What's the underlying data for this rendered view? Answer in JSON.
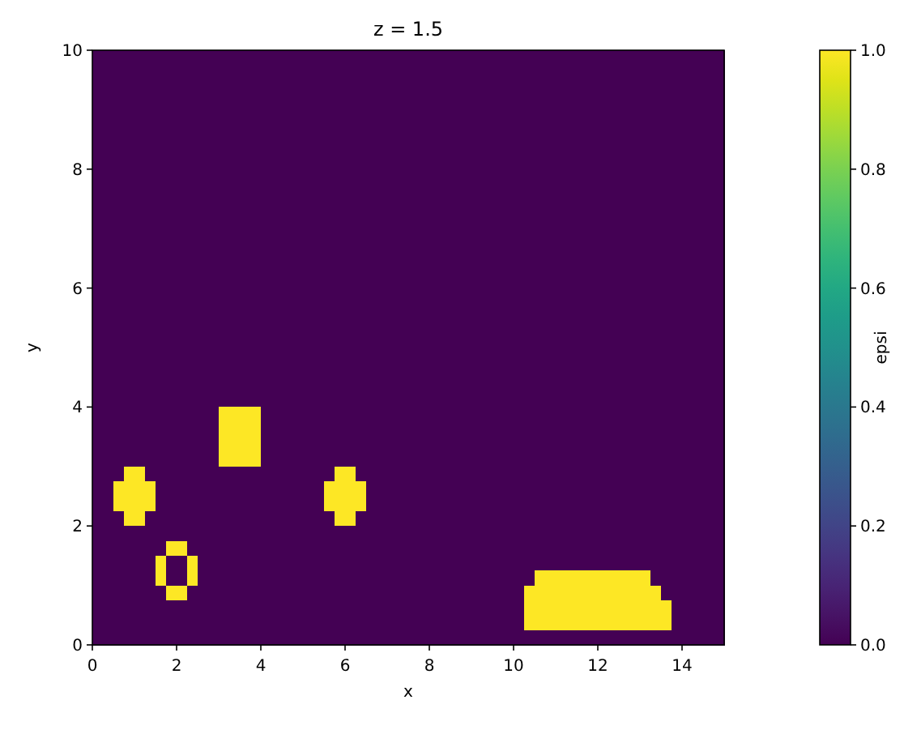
{
  "chart_data": {
    "type": "heatmap",
    "title": "z = 1.5",
    "xlabel": "x",
    "ylabel": "y",
    "clabel": "epsi",
    "xlim": [
      0,
      15
    ],
    "ylim": [
      0,
      10
    ],
    "xticks": [
      0,
      2,
      4,
      6,
      8,
      10,
      12,
      14
    ],
    "yticks": [
      0,
      2,
      4,
      6,
      8,
      10
    ],
    "clim": [
      0,
      1
    ],
    "cticks": [
      {
        "value": 0,
        "label": "0.0"
      },
      0.2,
      0.4,
      0.6,
      0.8,
      {
        "value": 1,
        "label": "1.0"
      }
    ],
    "cells": [
      [
        0,
        0,
        0,
        0,
        0,
        0,
        0,
        0,
        0,
        0,
        0,
        0,
        0,
        0,
        0,
        0,
        0,
        0,
        0,
        0,
        0,
        0,
        0,
        0,
        0,
        0,
        0,
        0,
        0,
        0,
        0,
        0,
        0,
        0,
        0,
        0,
        0,
        0,
        0,
        0,
        0,
        0,
        0,
        0,
        0,
        0,
        0,
        0,
        0,
        0,
        0,
        0,
        0,
        0,
        0,
        0,
        0,
        0,
        0,
        0
      ],
      [
        0,
        0,
        0,
        0,
        0,
        0,
        0,
        0,
        0,
        0,
        0,
        0,
        0,
        0,
        0,
        0,
        0,
        0,
        0,
        0,
        0,
        0,
        0,
        0,
        0,
        0,
        0,
        0,
        0,
        0,
        0,
        0,
        0,
        0,
        0,
        0,
        0,
        0,
        0,
        0,
        0,
        0,
        0,
        0,
        0,
        0,
        0,
        0,
        0,
        0,
        0,
        0,
        0,
        0,
        0,
        0,
        0,
        0,
        0,
        0
      ],
      [
        0,
        0,
        0,
        0,
        0,
        0,
        0,
        0,
        0,
        0,
        0,
        0,
        0,
        0,
        0,
        0,
        0,
        0,
        0,
        0,
        0,
        0,
        0,
        0,
        0,
        0,
        0,
        0,
        0,
        0,
        0,
        0,
        0,
        0,
        0,
        0,
        0,
        0,
        0,
        0,
        0,
        0,
        0,
        0,
        0,
        0,
        0,
        0,
        0,
        0,
        0,
        0,
        0,
        0,
        0,
        0,
        0,
        0,
        0,
        0
      ],
      [
        0,
        0,
        0,
        0,
        0,
        0,
        0,
        0,
        0,
        0,
        0,
        0,
        0,
        0,
        0,
        0,
        0,
        0,
        0,
        0,
        0,
        0,
        0,
        0,
        0,
        0,
        0,
        0,
        0,
        0,
        0,
        0,
        0,
        0,
        0,
        0,
        0,
        0,
        0,
        0,
        0,
        0,
        0,
        0,
        0,
        0,
        0,
        0,
        0,
        0,
        0,
        0,
        0,
        0,
        0,
        0,
        0,
        0,
        0,
        0
      ],
      [
        0,
        0,
        0,
        0,
        0,
        0,
        0,
        0,
        0,
        0,
        0,
        0,
        0,
        0,
        0,
        0,
        0,
        0,
        0,
        0,
        0,
        0,
        0,
        0,
        0,
        0,
        0,
        0,
        0,
        0,
        0,
        0,
        0,
        0,
        0,
        0,
        0,
        0,
        0,
        0,
        0,
        0,
        0,
        0,
        0,
        0,
        0,
        0,
        0,
        0,
        0,
        0,
        0,
        0,
        0,
        0,
        0,
        0,
        0,
        0
      ],
      [
        0,
        0,
        0,
        0,
        0,
        0,
        0,
        0,
        0,
        0,
        0,
        0,
        0,
        0,
        0,
        0,
        0,
        0,
        0,
        0,
        0,
        0,
        0,
        0,
        0,
        0,
        0,
        0,
        0,
        0,
        0,
        0,
        0,
        0,
        0,
        0,
        0,
        0,
        0,
        0,
        0,
        0,
        0,
        0,
        0,
        0,
        0,
        0,
        0,
        0,
        0,
        0,
        0,
        0,
        0,
        0,
        0,
        0,
        0,
        0
      ],
      [
        0,
        0,
        0,
        0,
        0,
        0,
        0,
        0,
        0,
        0,
        0,
        0,
        0,
        0,
        0,
        0,
        0,
        0,
        0,
        0,
        0,
        0,
        0,
        0,
        0,
        0,
        0,
        0,
        0,
        0,
        0,
        0,
        0,
        0,
        0,
        0,
        0,
        0,
        0,
        0,
        0,
        0,
        0,
        0,
        0,
        0,
        0,
        0,
        0,
        0,
        0,
        0,
        0,
        0,
        0,
        0,
        0,
        0,
        0,
        0
      ],
      [
        0,
        0,
        0,
        0,
        0,
        0,
        0,
        0,
        0,
        0,
        0,
        0,
        0,
        0,
        0,
        0,
        0,
        0,
        0,
        0,
        0,
        0,
        0,
        0,
        0,
        0,
        0,
        0,
        0,
        0,
        0,
        0,
        0,
        0,
        0,
        0,
        0,
        0,
        0,
        0,
        0,
        0,
        0,
        0,
        0,
        0,
        0,
        0,
        0,
        0,
        0,
        0,
        0,
        0,
        0,
        0,
        0,
        0,
        0,
        0
      ],
      [
        0,
        0,
        0,
        0,
        0,
        0,
        0,
        0,
        0,
        0,
        0,
        0,
        0,
        0,
        0,
        0,
        0,
        0,
        0,
        0,
        0,
        0,
        0,
        0,
        0,
        0,
        0,
        0,
        0,
        0,
        0,
        0,
        0,
        0,
        0,
        0,
        0,
        0,
        0,
        0,
        0,
        0,
        0,
        0,
        0,
        0,
        0,
        0,
        0,
        0,
        0,
        0,
        0,
        0,
        0,
        0,
        0,
        0,
        0,
        0
      ],
      [
        0,
        0,
        0,
        0,
        0,
        0,
        0,
        0,
        0,
        0,
        0,
        0,
        0,
        0,
        0,
        0,
        0,
        0,
        0,
        0,
        0,
        0,
        0,
        0,
        0,
        0,
        0,
        0,
        0,
        0,
        0,
        0,
        0,
        0,
        0,
        0,
        0,
        0,
        0,
        0,
        0,
        0,
        0,
        0,
        0,
        0,
        0,
        0,
        0,
        0,
        0,
        0,
        0,
        0,
        0,
        0,
        0,
        0,
        0,
        0
      ],
      [
        0,
        0,
        0,
        0,
        0,
        0,
        0,
        0,
        0,
        0,
        0,
        0,
        0,
        0,
        0,
        0,
        0,
        0,
        0,
        0,
        0,
        0,
        0,
        0,
        0,
        0,
        0,
        0,
        0,
        0,
        0,
        0,
        0,
        0,
        0,
        0,
        0,
        0,
        0,
        0,
        0,
        0,
        0,
        0,
        0,
        0,
        0,
        0,
        0,
        0,
        0,
        0,
        0,
        0,
        0,
        0,
        0,
        0,
        0,
        0
      ],
      [
        0,
        0,
        0,
        0,
        0,
        0,
        0,
        0,
        0,
        0,
        0,
        0,
        0,
        0,
        0,
        0,
        0,
        0,
        0,
        0,
        0,
        0,
        0,
        0,
        0,
        0,
        0,
        0,
        0,
        0,
        0,
        0,
        0,
        0,
        0,
        0,
        0,
        0,
        0,
        0,
        0,
        0,
        0,
        0,
        0,
        0,
        0,
        0,
        0,
        0,
        0,
        0,
        0,
        0,
        0,
        0,
        0,
        0,
        0,
        0
      ],
      [
        0,
        0,
        0,
        0,
        0,
        0,
        0,
        0,
        0,
        0,
        0,
        0,
        0,
        0,
        0,
        0,
        0,
        0,
        0,
        0,
        0,
        0,
        0,
        0,
        0,
        0,
        0,
        0,
        0,
        0,
        0,
        0,
        0,
        0,
        0,
        0,
        0,
        0,
        0,
        0,
        0,
        0,
        0,
        0,
        0,
        0,
        0,
        0,
        0,
        0,
        0,
        0,
        0,
        0,
        0,
        0,
        0,
        0,
        0,
        0
      ],
      [
        0,
        0,
        0,
        0,
        0,
        0,
        0,
        0,
        0,
        0,
        0,
        0,
        0,
        0,
        0,
        0,
        0,
        0,
        0,
        0,
        0,
        0,
        0,
        0,
        0,
        0,
        0,
        0,
        0,
        0,
        0,
        0,
        0,
        0,
        0,
        0,
        0,
        0,
        0,
        0,
        0,
        0,
        0,
        0,
        0,
        0,
        0,
        0,
        0,
        0,
        0,
        0,
        0,
        0,
        0,
        0,
        0,
        0,
        0,
        0
      ],
      [
        0,
        0,
        0,
        0,
        0,
        0,
        0,
        0,
        0,
        0,
        0,
        0,
        0,
        0,
        0,
        0,
        0,
        0,
        0,
        0,
        0,
        0,
        0,
        0,
        0,
        0,
        0,
        0,
        0,
        0,
        0,
        0,
        0,
        0,
        0,
        0,
        0,
        0,
        0,
        0,
        0,
        0,
        0,
        0,
        0,
        0,
        0,
        0,
        0,
        0,
        0,
        0,
        0,
        0,
        0,
        0,
        0,
        0,
        0,
        0
      ],
      [
        0,
        0,
        0,
        0,
        0,
        0,
        0,
        0,
        0,
        0,
        0,
        0,
        0,
        0,
        0,
        0,
        0,
        0,
        0,
        0,
        0,
        0,
        0,
        0,
        0,
        0,
        0,
        0,
        0,
        0,
        0,
        0,
        0,
        0,
        0,
        0,
        0,
        0,
        0,
        0,
        0,
        0,
        0,
        0,
        0,
        0,
        0,
        0,
        0,
        0,
        0,
        0,
        0,
        0,
        0,
        0,
        0,
        0,
        0,
        0
      ],
      [
        0,
        0,
        0,
        0,
        0,
        0,
        0,
        0,
        0,
        0,
        0,
        0,
        0,
        0,
        0,
        0,
        0,
        0,
        0,
        0,
        0,
        0,
        0,
        0,
        0,
        0,
        0,
        0,
        0,
        0,
        0,
        0,
        0,
        0,
        0,
        0,
        0,
        0,
        0,
        0,
        0,
        0,
        0,
        0,
        0,
        0,
        0,
        0,
        0,
        0,
        0,
        0,
        0,
        0,
        0,
        0,
        0,
        0,
        0,
        0
      ],
      [
        0,
        0,
        0,
        0,
        0,
        0,
        0,
        0,
        0,
        0,
        0,
        0,
        0,
        0,
        0,
        0,
        0,
        0,
        0,
        0,
        0,
        0,
        0,
        0,
        0,
        0,
        0,
        0,
        0,
        0,
        0,
        0,
        0,
        0,
        0,
        0,
        0,
        0,
        0,
        0,
        0,
        0,
        0,
        0,
        0,
        0,
        0,
        0,
        0,
        0,
        0,
        0,
        0,
        0,
        0,
        0,
        0,
        0,
        0,
        0
      ],
      [
        0,
        0,
        0,
        0,
        0,
        0,
        0,
        0,
        0,
        0,
        0,
        0,
        0,
        0,
        0,
        0,
        0,
        0,
        0,
        0,
        0,
        0,
        0,
        0,
        0,
        0,
        0,
        0,
        0,
        0,
        0,
        0,
        0,
        0,
        0,
        0,
        0,
        0,
        0,
        0,
        0,
        0,
        0,
        0,
        0,
        0,
        0,
        0,
        0,
        0,
        0,
        0,
        0,
        0,
        0,
        0,
        0,
        0,
        0,
        0
      ],
      [
        0,
        0,
        0,
        0,
        0,
        0,
        0,
        0,
        0,
        0,
        0,
        0,
        0,
        0,
        0,
        0,
        0,
        0,
        0,
        0,
        0,
        0,
        0,
        0,
        0,
        0,
        0,
        0,
        0,
        0,
        0,
        0,
        0,
        0,
        0,
        0,
        0,
        0,
        0,
        0,
        0,
        0,
        0,
        0,
        0,
        0,
        0,
        0,
        0,
        0,
        0,
        0,
        0,
        0,
        0,
        0,
        0,
        0,
        0,
        0
      ],
      [
        0,
        0,
        0,
        0,
        0,
        0,
        0,
        0,
        0,
        0,
        0,
        0,
        0,
        0,
        0,
        0,
        0,
        0,
        0,
        0,
        0,
        0,
        0,
        0,
        0,
        0,
        0,
        0,
        0,
        0,
        0,
        0,
        0,
        0,
        0,
        0,
        0,
        0,
        0,
        0,
        0,
        0,
        0,
        0,
        0,
        0,
        0,
        0,
        0,
        0,
        0,
        0,
        0,
        0,
        0,
        0,
        0,
        0,
        0,
        0
      ],
      [
        0,
        0,
        0,
        0,
        0,
        0,
        0,
        0,
        0,
        0,
        0,
        0,
        0,
        0,
        0,
        0,
        0,
        0,
        0,
        0,
        0,
        0,
        0,
        0,
        0,
        0,
        0,
        0,
        0,
        0,
        0,
        0,
        0,
        0,
        0,
        0,
        0,
        0,
        0,
        0,
        0,
        0,
        0,
        0,
        0,
        0,
        0,
        0,
        0,
        0,
        0,
        0,
        0,
        0,
        0,
        0,
        0,
        0,
        0,
        0
      ],
      [
        0,
        0,
        0,
        0,
        0,
        0,
        0,
        0,
        0,
        0,
        0,
        0,
        0,
        0,
        0,
        0,
        0,
        0,
        0,
        0,
        0,
        0,
        0,
        0,
        0,
        0,
        0,
        0,
        0,
        0,
        0,
        0,
        0,
        0,
        0,
        0,
        0,
        0,
        0,
        0,
        0,
        0,
        0,
        0,
        0,
        0,
        0,
        0,
        0,
        0,
        0,
        0,
        0,
        0,
        0,
        0,
        0,
        0,
        0,
        0
      ],
      [
        0,
        0,
        0,
        0,
        0,
        0,
        0,
        0,
        0,
        0,
        0,
        0,
        0,
        0,
        0,
        0,
        0,
        0,
        0,
        0,
        0,
        0,
        0,
        0,
        0,
        0,
        0,
        0,
        0,
        0,
        0,
        0,
        0,
        0,
        0,
        0,
        0,
        0,
        0,
        0,
        0,
        0,
        0,
        0,
        0,
        0,
        0,
        0,
        0,
        0,
        0,
        0,
        0,
        0,
        0,
        0,
        0,
        0,
        0,
        0
      ],
      [
        0,
        0,
        0,
        0,
        0,
        0,
        0,
        0,
        0,
        0,
        0,
        0,
        1,
        1,
        1,
        1,
        0,
        0,
        0,
        0,
        0,
        0,
        0,
        0,
        0,
        0,
        0,
        0,
        0,
        0,
        0,
        0,
        0,
        0,
        0,
        0,
        0,
        0,
        0,
        0,
        0,
        0,
        0,
        0,
        0,
        0,
        0,
        0,
        0,
        0,
        0,
        0,
        0,
        0,
        0,
        0,
        0,
        0,
        0,
        0
      ],
      [
        0,
        0,
        0,
        0,
        0,
        0,
        0,
        0,
        0,
        0,
        0,
        0,
        1,
        1,
        1,
        1,
        0,
        0,
        0,
        0,
        0,
        0,
        0,
        0,
        0,
        0,
        0,
        0,
        0,
        0,
        0,
        0,
        0,
        0,
        0,
        0,
        0,
        0,
        0,
        0,
        0,
        0,
        0,
        0,
        0,
        0,
        0,
        0,
        0,
        0,
        0,
        0,
        0,
        0,
        0,
        0,
        0,
        0,
        0,
        0
      ],
      [
        0,
        0,
        0,
        0,
        0,
        0,
        0,
        0,
        0,
        0,
        0,
        0,
        1,
        1,
        1,
        1,
        0,
        0,
        0,
        0,
        0,
        0,
        0,
        0,
        0,
        0,
        0,
        0,
        0,
        0,
        0,
        0,
        0,
        0,
        0,
        0,
        0,
        0,
        0,
        0,
        0,
        0,
        0,
        0,
        0,
        0,
        0,
        0,
        0,
        0,
        0,
        0,
        0,
        0,
        0,
        0,
        0,
        0,
        0,
        0
      ],
      [
        0,
        0,
        0,
        0,
        0,
        0,
        0,
        0,
        0,
        0,
        0,
        0,
        1,
        1,
        1,
        1,
        0,
        0,
        0,
        0,
        0,
        0,
        0,
        0,
        0,
        0,
        0,
        0,
        0,
        0,
        0,
        0,
        0,
        0,
        0,
        0,
        0,
        0,
        0,
        0,
        0,
        0,
        0,
        0,
        0,
        0,
        0,
        0,
        0,
        0,
        0,
        0,
        0,
        0,
        0,
        0,
        0,
        0,
        0,
        0
      ],
      [
        0,
        0,
        0,
        1,
        1,
        0,
        0,
        0,
        0,
        0,
        0,
        0,
        0,
        0,
        0,
        0,
        0,
        0,
        0,
        0,
        0,
        0,
        0,
        1,
        1,
        0,
        0,
        0,
        0,
        0,
        0,
        0,
        0,
        0,
        0,
        0,
        0,
        0,
        0,
        0,
        0,
        0,
        0,
        0,
        0,
        0,
        0,
        0,
        0,
        0,
        0,
        0,
        0,
        0,
        0,
        0,
        0,
        0,
        0,
        0
      ],
      [
        0,
        0,
        1,
        1,
        1,
        1,
        0,
        0,
        0,
        0,
        0,
        0,
        0,
        0,
        0,
        0,
        0,
        0,
        0,
        0,
        0,
        0,
        1,
        1,
        1,
        1,
        0,
        0,
        0,
        0,
        0,
        0,
        0,
        0,
        0,
        0,
        0,
        0,
        0,
        0,
        0,
        0,
        0,
        0,
        0,
        0,
        0,
        0,
        0,
        0,
        0,
        0,
        0,
        0,
        0,
        0,
        0,
        0,
        0,
        0
      ],
      [
        0,
        0,
        1,
        1,
        1,
        1,
        0,
        0,
        0,
        0,
        0,
        0,
        0,
        0,
        0,
        0,
        0,
        0,
        0,
        0,
        0,
        0,
        1,
        1,
        1,
        1,
        0,
        0,
        0,
        0,
        0,
        0,
        0,
        0,
        0,
        0,
        0,
        0,
        0,
        0,
        0,
        0,
        0,
        0,
        0,
        0,
        0,
        0,
        0,
        0,
        0,
        0,
        0,
        0,
        0,
        0,
        0,
        0,
        0,
        0
      ],
      [
        0,
        0,
        0,
        1,
        1,
        0,
        0,
        0,
        0,
        0,
        0,
        0,
        0,
        0,
        0,
        0,
        0,
        0,
        0,
        0,
        0,
        0,
        0,
        1,
        1,
        0,
        0,
        0,
        0,
        0,
        0,
        0,
        0,
        0,
        0,
        0,
        0,
        0,
        0,
        0,
        0,
        0,
        0,
        0,
        0,
        0,
        0,
        0,
        0,
        0,
        0,
        0,
        0,
        0,
        0,
        0,
        0,
        0,
        0,
        0
      ],
      [
        0,
        0,
        0,
        0,
        0,
        0,
        0,
        0,
        0,
        0,
        0,
        0,
        0,
        0,
        0,
        0,
        0,
        0,
        0,
        0,
        0,
        0,
        0,
        0,
        0,
        0,
        0,
        0,
        0,
        0,
        0,
        0,
        0,
        0,
        0,
        0,
        0,
        0,
        0,
        0,
        0,
        0,
        0,
        0,
        0,
        0,
        0,
        0,
        0,
        0,
        0,
        0,
        0,
        0,
        0,
        0,
        0,
        0,
        0,
        0
      ],
      [
        0,
        0,
        0,
        0,
        0,
        0,
        0,
        1,
        1,
        0,
        0,
        0,
        0,
        0,
        0,
        0,
        0,
        0,
        0,
        0,
        0,
        0,
        0,
        0,
        0,
        0,
        0,
        0,
        0,
        0,
        0,
        0,
        0,
        0,
        0,
        0,
        0,
        0,
        0,
        0,
        0,
        0,
        0,
        0,
        0,
        0,
        0,
        0,
        0,
        0,
        0,
        0,
        0,
        0,
        0,
        0,
        0,
        0,
        0,
        0
      ],
      [
        0,
        0,
        0,
        0,
        0,
        0,
        1,
        0,
        0,
        1,
        0,
        0,
        0,
        0,
        0,
        0,
        0,
        0,
        0,
        0,
        0,
        0,
        0,
        0,
        0,
        0,
        0,
        0,
        0,
        0,
        0,
        0,
        0,
        0,
        0,
        0,
        0,
        0,
        0,
        0,
        0,
        0,
        0,
        0,
        0,
        0,
        0,
        0,
        0,
        0,
        0,
        0,
        0,
        0,
        0,
        0,
        0,
        0,
        0,
        0
      ],
      [
        0,
        0,
        0,
        0,
        0,
        0,
        1,
        0,
        0,
        1,
        0,
        0,
        0,
        0,
        0,
        0,
        0,
        0,
        0,
        0,
        0,
        0,
        0,
        0,
        0,
        0,
        0,
        0,
        0,
        0,
        0,
        0,
        0,
        0,
        0,
        0,
        0,
        0,
        0,
        0,
        0,
        0,
        1,
        1,
        1,
        1,
        1,
        1,
        1,
        1,
        1,
        1,
        1,
        0,
        0,
        0,
        0,
        0,
        0,
        0
      ],
      [
        0,
        0,
        0,
        0,
        0,
        0,
        0,
        1,
        1,
        0,
        0,
        0,
        0,
        0,
        0,
        0,
        0,
        0,
        0,
        0,
        0,
        0,
        0,
        0,
        0,
        0,
        0,
        0,
        0,
        0,
        0,
        0,
        0,
        0,
        0,
        0,
        0,
        0,
        0,
        0,
        0,
        1,
        1,
        1,
        1,
        1,
        1,
        1,
        1,
        1,
        1,
        1,
        1,
        1,
        0,
        0,
        0,
        0,
        0,
        0
      ],
      [
        0,
        0,
        0,
        0,
        0,
        0,
        0,
        0,
        0,
        0,
        0,
        0,
        0,
        0,
        0,
        0,
        0,
        0,
        0,
        0,
        0,
        0,
        0,
        0,
        0,
        0,
        0,
        0,
        0,
        0,
        0,
        0,
        0,
        0,
        0,
        0,
        0,
        0,
        0,
        0,
        0,
        1,
        1,
        1,
        1,
        1,
        1,
        1,
        1,
        1,
        1,
        1,
        1,
        1,
        1,
        0,
        0,
        0,
        0,
        0
      ],
      [
        0,
        0,
        0,
        0,
        0,
        0,
        0,
        0,
        0,
        0,
        0,
        0,
        0,
        0,
        0,
        0,
        0,
        0,
        0,
        0,
        0,
        0,
        0,
        0,
        0,
        0,
        0,
        0,
        0,
        0,
        0,
        0,
        0,
        0,
        0,
        0,
        0,
        0,
        0,
        0,
        0,
        1,
        1,
        1,
        1,
        1,
        1,
        1,
        1,
        1,
        1,
        1,
        1,
        1,
        1,
        0,
        0,
        0,
        0,
        0
      ],
      [
        0,
        0,
        0,
        0,
        0,
        0,
        0,
        0,
        0,
        0,
        0,
        0,
        0,
        0,
        0,
        0,
        0,
        0,
        0,
        0,
        0,
        0,
        0,
        0,
        0,
        0,
        0,
        0,
        0,
        0,
        0,
        0,
        0,
        0,
        0,
        0,
        0,
        0,
        0,
        0,
        0,
        0,
        0,
        0,
        0,
        0,
        0,
        0,
        0,
        0,
        0,
        0,
        0,
        0,
        0,
        0,
        0,
        0,
        0,
        0
      ]
    ]
  }
}
